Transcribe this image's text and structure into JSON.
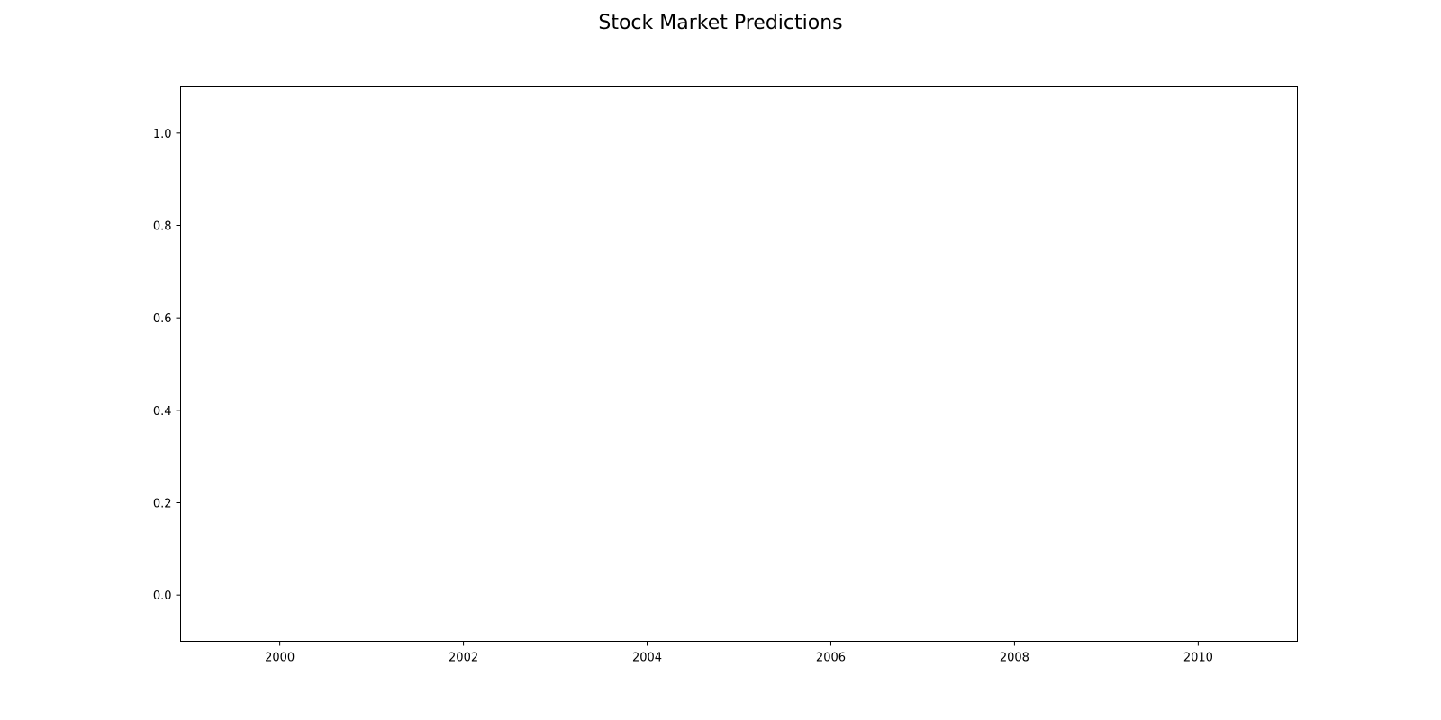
{
  "chart_data": {
    "type": "line",
    "title": "Stock Market Predictions",
    "xlabel": "",
    "ylabel": "",
    "x_ticks": [
      "2000",
      "2002",
      "2004",
      "2006",
      "2008",
      "2010"
    ],
    "y_ticks": [
      "0.0",
      "0.2",
      "0.4",
      "0.6",
      "0.8",
      "1.0"
    ],
    "xlim": [
      1998.92,
      2011.08
    ],
    "ylim": [
      -0.1,
      1.1
    ],
    "grid": false,
    "series": []
  }
}
